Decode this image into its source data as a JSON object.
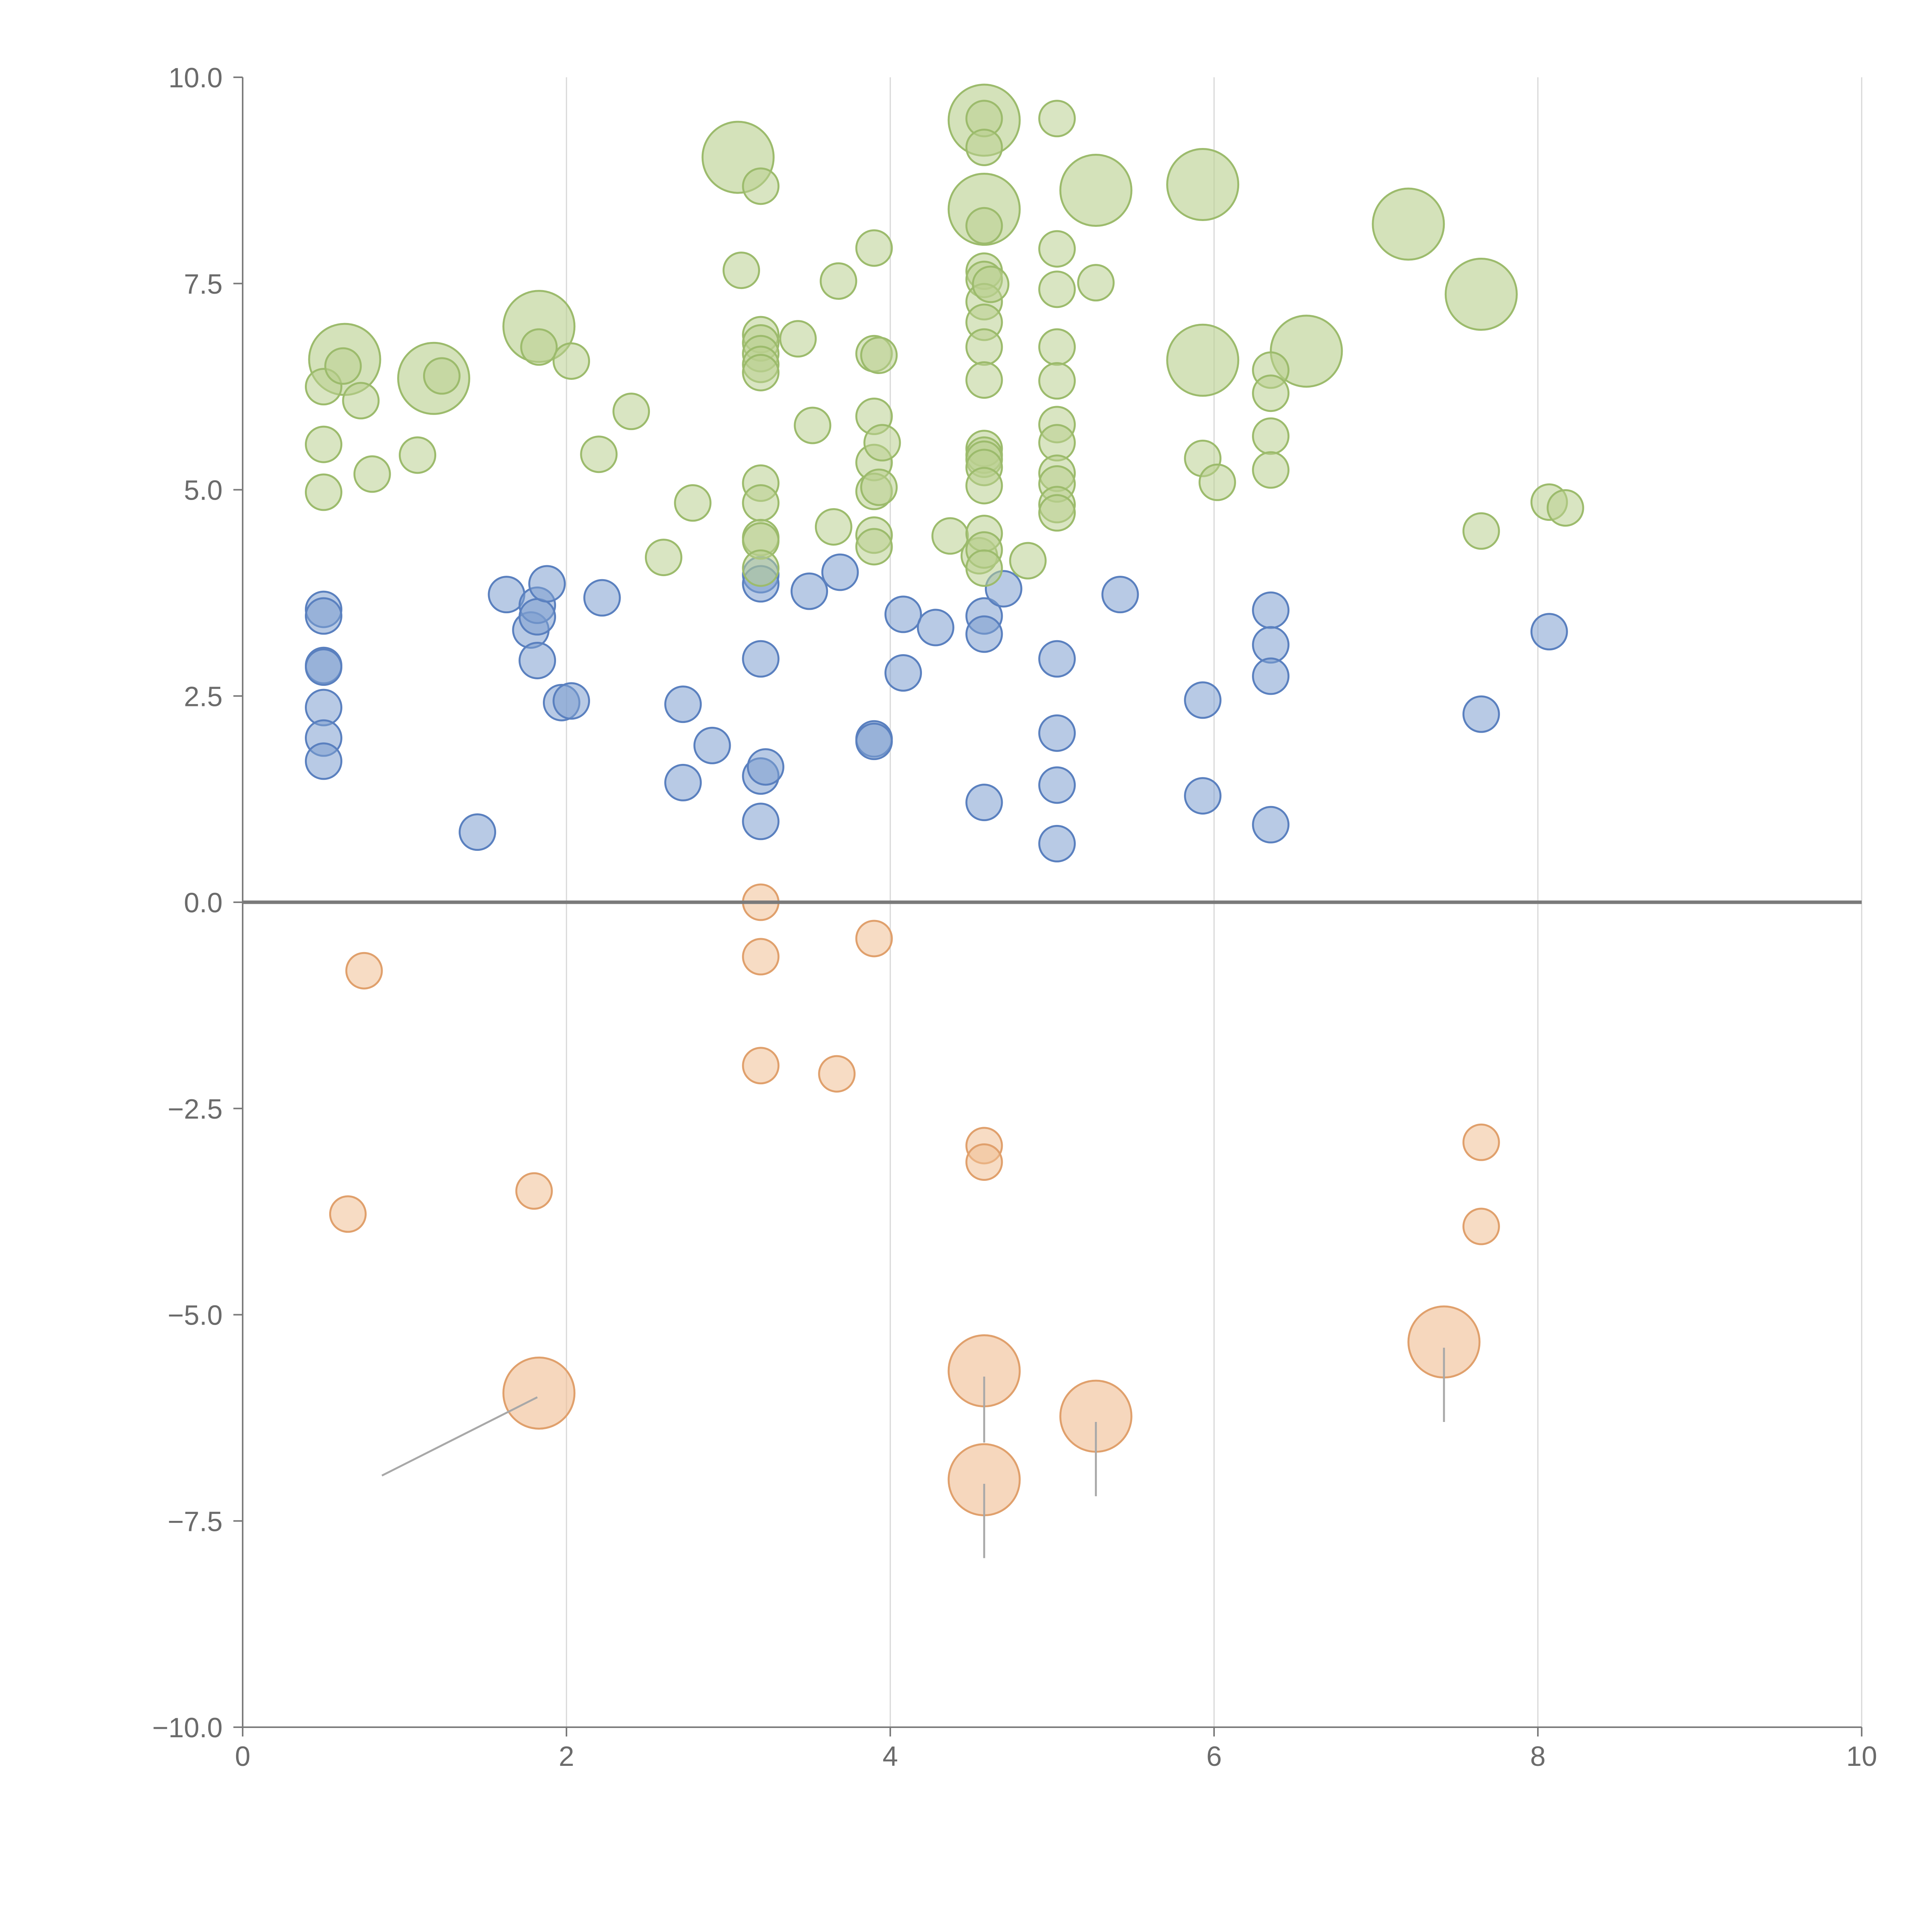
{
  "chart_data": {
    "type": "scatter",
    "title": "",
    "xlabel": "",
    "ylabel": "",
    "xlim": [
      0,
      10
    ],
    "ylim": [
      -10,
      10
    ],
    "x_ticks": [
      "0",
      "2",
      "4",
      "6",
      "8",
      "10"
    ],
    "y_ticks": [
      "−10.0",
      "−7.5",
      "−5.0",
      "−2.5",
      "0.0",
      "2.5",
      "5.0",
      "7.5",
      "10.0"
    ],
    "x_tick_values": [
      0,
      2,
      4,
      6,
      8,
      10
    ],
    "y_tick_values": [
      -10,
      -7.5,
      -5,
      -2.5,
      0,
      2.5,
      5,
      7.5,
      10
    ],
    "x_grid": true,
    "y_grid": false,
    "reference_line_y": 0,
    "series": [
      {
        "name": "blue",
        "color": "#7d9fd0",
        "stroke": "#5a80bf",
        "points": [
          [
            0.5,
            3.55
          ],
          [
            0.5,
            3.47
          ],
          [
            0.5,
            2.87
          ],
          [
            0.5,
            2.85
          ],
          [
            0.5,
            2.36
          ],
          [
            0.5,
            1.99
          ],
          [
            0.5,
            1.71
          ],
          [
            1.45,
            0.85
          ],
          [
            1.63,
            3.73
          ],
          [
            1.78,
            3.3
          ],
          [
            1.82,
            3.6
          ],
          [
            1.82,
            3.46
          ],
          [
            1.82,
            2.93
          ],
          [
            1.88,
            3.86
          ],
          [
            1.97,
            2.42
          ],
          [
            2.03,
            2.44
          ],
          [
            2.22,
            3.69
          ],
          [
            2.72,
            2.4
          ],
          [
            2.72,
            1.45
          ],
          [
            2.9,
            1.9
          ],
          [
            3.2,
            3.97
          ],
          [
            3.2,
            3.86
          ],
          [
            3.2,
            2.95
          ],
          [
            3.2,
            1.53
          ],
          [
            3.2,
            0.98
          ],
          [
            3.23,
            1.64
          ],
          [
            3.5,
            3.77
          ],
          [
            3.69,
            4.0
          ],
          [
            3.9,
            1.98
          ],
          [
            3.9,
            1.95
          ],
          [
            4.08,
            3.49
          ],
          [
            4.08,
            2.78
          ],
          [
            4.28,
            3.33
          ],
          [
            4.58,
            3.47
          ],
          [
            4.58,
            3.25
          ],
          [
            4.58,
            1.21
          ],
          [
            4.7,
            3.8
          ],
          [
            5.03,
            2.95
          ],
          [
            5.03,
            2.05
          ],
          [
            5.03,
            1.42
          ],
          [
            5.03,
            0.71
          ],
          [
            5.42,
            3.73
          ],
          [
            5.93,
            2.45
          ],
          [
            5.93,
            1.29
          ],
          [
            6.35,
            3.54
          ],
          [
            6.35,
            3.12
          ],
          [
            6.35,
            2.74
          ],
          [
            6.35,
            0.94
          ],
          [
            7.65,
            2.28
          ],
          [
            8.07,
            3.28
          ]
        ]
      },
      {
        "name": "green",
        "color": "#b9d08f",
        "stroke": "#9cbb6c",
        "points": [
          [
            0.5,
            6.25
          ],
          [
            0.5,
            5.55
          ],
          [
            0.5,
            4.97
          ],
          [
            0.62,
            6.5
          ],
          [
            0.73,
            6.08
          ],
          [
            0.8,
            5.19
          ],
          [
            1.08,
            5.42
          ],
          [
            1.23,
            6.38
          ],
          [
            1.83,
            6.73
          ],
          [
            2.03,
            6.56
          ],
          [
            2.2,
            5.43
          ],
          [
            2.4,
            5.95
          ],
          [
            2.6,
            4.18
          ],
          [
            2.78,
            4.84
          ],
          [
            3.08,
            7.66
          ],
          [
            3.2,
            8.68
          ],
          [
            3.2,
            6.88
          ],
          [
            3.2,
            6.78
          ],
          [
            3.2,
            6.65
          ],
          [
            3.2,
            6.52
          ],
          [
            3.2,
            6.42
          ],
          [
            3.2,
            5.08
          ],
          [
            3.2,
            4.84
          ],
          [
            3.2,
            4.42
          ],
          [
            3.2,
            4.38
          ],
          [
            3.2,
            4.05
          ],
          [
            3.43,
            6.83
          ],
          [
            3.52,
            5.78
          ],
          [
            3.65,
            4.55
          ],
          [
            3.68,
            7.53
          ],
          [
            3.9,
            7.93
          ],
          [
            3.9,
            6.65
          ],
          [
            3.9,
            5.89
          ],
          [
            3.9,
            5.33
          ],
          [
            3.9,
            4.98
          ],
          [
            3.9,
            4.45
          ],
          [
            3.9,
            4.31
          ],
          [
            3.93,
            6.63
          ],
          [
            3.93,
            5.03
          ],
          [
            3.95,
            5.57
          ],
          [
            4.37,
            4.44
          ],
          [
            4.55,
            4.2
          ],
          [
            4.58,
            9.5
          ],
          [
            4.58,
            9.15
          ],
          [
            4.58,
            8.2
          ],
          [
            4.58,
            7.65
          ],
          [
            4.58,
            7.55
          ],
          [
            4.58,
            7.28
          ],
          [
            4.58,
            7.03
          ],
          [
            4.58,
            6.73
          ],
          [
            4.58,
            6.33
          ],
          [
            4.58,
            5.5
          ],
          [
            4.58,
            5.42
          ],
          [
            4.58,
            5.37
          ],
          [
            4.58,
            5.27
          ],
          [
            4.58,
            5.05
          ],
          [
            4.58,
            4.47
          ],
          [
            4.58,
            4.27
          ],
          [
            4.58,
            4.05
          ],
          [
            4.62,
            7.49
          ],
          [
            4.85,
            4.14
          ],
          [
            5.03,
            9.5
          ],
          [
            5.03,
            7.92
          ],
          [
            5.03,
            7.43
          ],
          [
            5.03,
            6.73
          ],
          [
            5.03,
            6.32
          ],
          [
            5.03,
            5.79
          ],
          [
            5.03,
            5.57
          ],
          [
            5.03,
            5.2
          ],
          [
            5.03,
            5.07
          ],
          [
            5.03,
            4.82
          ],
          [
            5.03,
            4.72
          ],
          [
            5.27,
            7.51
          ],
          [
            5.93,
            5.38
          ],
          [
            6.02,
            5.09
          ],
          [
            6.35,
            6.45
          ],
          [
            6.35,
            6.17
          ],
          [
            6.35,
            5.65
          ],
          [
            6.35,
            5.24
          ],
          [
            7.65,
            4.5
          ],
          [
            8.07,
            4.85
          ],
          [
            8.17,
            4.78
          ]
        ]
      },
      {
        "name": "orange",
        "color": "#f0bf94",
        "stroke": "#e0a06c",
        "points": [
          [
            0.75,
            -0.83
          ],
          [
            0.65,
            -3.78
          ],
          [
            1.8,
            -3.5
          ],
          [
            3.2,
            -0.0
          ],
          [
            3.2,
            -0.66
          ],
          [
            3.2,
            -1.98
          ],
          [
            3.67,
            -2.08
          ],
          [
            3.9,
            -0.44
          ],
          [
            4.58,
            -2.95
          ],
          [
            4.58,
            -3.15
          ],
          [
            7.65,
            -2.91
          ],
          [
            7.65,
            -3.93
          ]
        ]
      }
    ],
    "large_bubbles": [
      {
        "series": "green",
        "x": 0.63,
        "y": 6.58,
        "size": "large"
      },
      {
        "series": "green",
        "x": 1.18,
        "y": 6.35,
        "size": "large"
      },
      {
        "series": "green",
        "x": 1.83,
        "y": 6.98,
        "size": "large"
      },
      {
        "series": "green",
        "x": 3.06,
        "y": 9.03,
        "size": "large"
      },
      {
        "series": "green",
        "x": 4.58,
        "y": 9.48,
        "size": "large"
      },
      {
        "series": "green",
        "x": 4.58,
        "y": 8.4,
        "size": "large"
      },
      {
        "series": "green",
        "x": 5.27,
        "y": 8.63,
        "size": "large"
      },
      {
        "series": "green",
        "x": 5.93,
        "y": 8.7,
        "size": "large"
      },
      {
        "series": "green",
        "x": 5.93,
        "y": 6.57,
        "size": "large"
      },
      {
        "series": "green",
        "x": 6.57,
        "y": 6.68,
        "size": "large"
      },
      {
        "series": "green",
        "x": 7.2,
        "y": 8.22,
        "size": "large"
      },
      {
        "series": "green",
        "x": 7.65,
        "y": 7.37,
        "size": "large"
      },
      {
        "series": "orange",
        "x": 1.83,
        "y": -5.95,
        "size": "large"
      },
      {
        "series": "orange",
        "x": 4.58,
        "y": -5.68,
        "size": "large"
      },
      {
        "series": "orange",
        "x": 4.58,
        "y": -7.0,
        "size": "large"
      },
      {
        "series": "orange",
        "x": 5.27,
        "y": -6.23,
        "size": "large"
      },
      {
        "series": "orange",
        "x": 7.42,
        "y": -5.33,
        "size": "large"
      }
    ],
    "annotation_lines": [
      {
        "from": [
          1.82,
          -6.0
        ],
        "to": [
          0.86,
          -6.95
        ]
      },
      {
        "from": [
          4.58,
          -5.75
        ],
        "to": [
          4.58,
          -6.55
        ]
      },
      {
        "from": [
          4.58,
          -7.05
        ],
        "to": [
          4.58,
          -7.95
        ]
      },
      {
        "from": [
          5.27,
          -6.3
        ],
        "to": [
          5.27,
          -7.2
        ]
      },
      {
        "from": [
          7.42,
          -5.4
        ],
        "to": [
          7.42,
          -6.3
        ]
      }
    ]
  }
}
